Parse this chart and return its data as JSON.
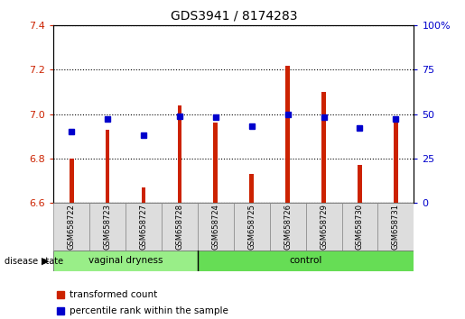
{
  "title": "GDS3941 / 8174283",
  "samples": [
    "GSM658722",
    "GSM658723",
    "GSM658727",
    "GSM658728",
    "GSM658724",
    "GSM658725",
    "GSM658726",
    "GSM658729",
    "GSM658730",
    "GSM658731"
  ],
  "red_values": [
    6.8,
    6.93,
    6.67,
    7.04,
    6.96,
    6.73,
    7.22,
    7.1,
    6.77,
    6.96
  ],
  "blue_values_pct": [
    40,
    47,
    38,
    49,
    48,
    43,
    50,
    48,
    42,
    47
  ],
  "ylim": [
    6.6,
    7.4
  ],
  "yticks": [
    6.6,
    6.8,
    7.0,
    7.2,
    7.4
  ],
  "y2lim": [
    0,
    100
  ],
  "y2ticks": [
    0,
    25,
    50,
    75,
    100
  ],
  "y2ticklabels": [
    "0",
    "25",
    "50",
    "75",
    "100%"
  ],
  "left_color": "#cc2200",
  "right_color": "#0000cc",
  "bar_color": "#cc2200",
  "dot_color": "#0000cc",
  "group1_label": "vaginal dryness",
  "group2_label": "control",
  "group1_count": 4,
  "group2_count": 6,
  "group1_color": "#99ee88",
  "group2_color": "#66dd55",
  "xlabel_disease": "disease state",
  "legend_red": "transformed count",
  "legend_blue": "percentile rank within the sample",
  "bar_bottom": 6.6,
  "bar_width": 0.12
}
